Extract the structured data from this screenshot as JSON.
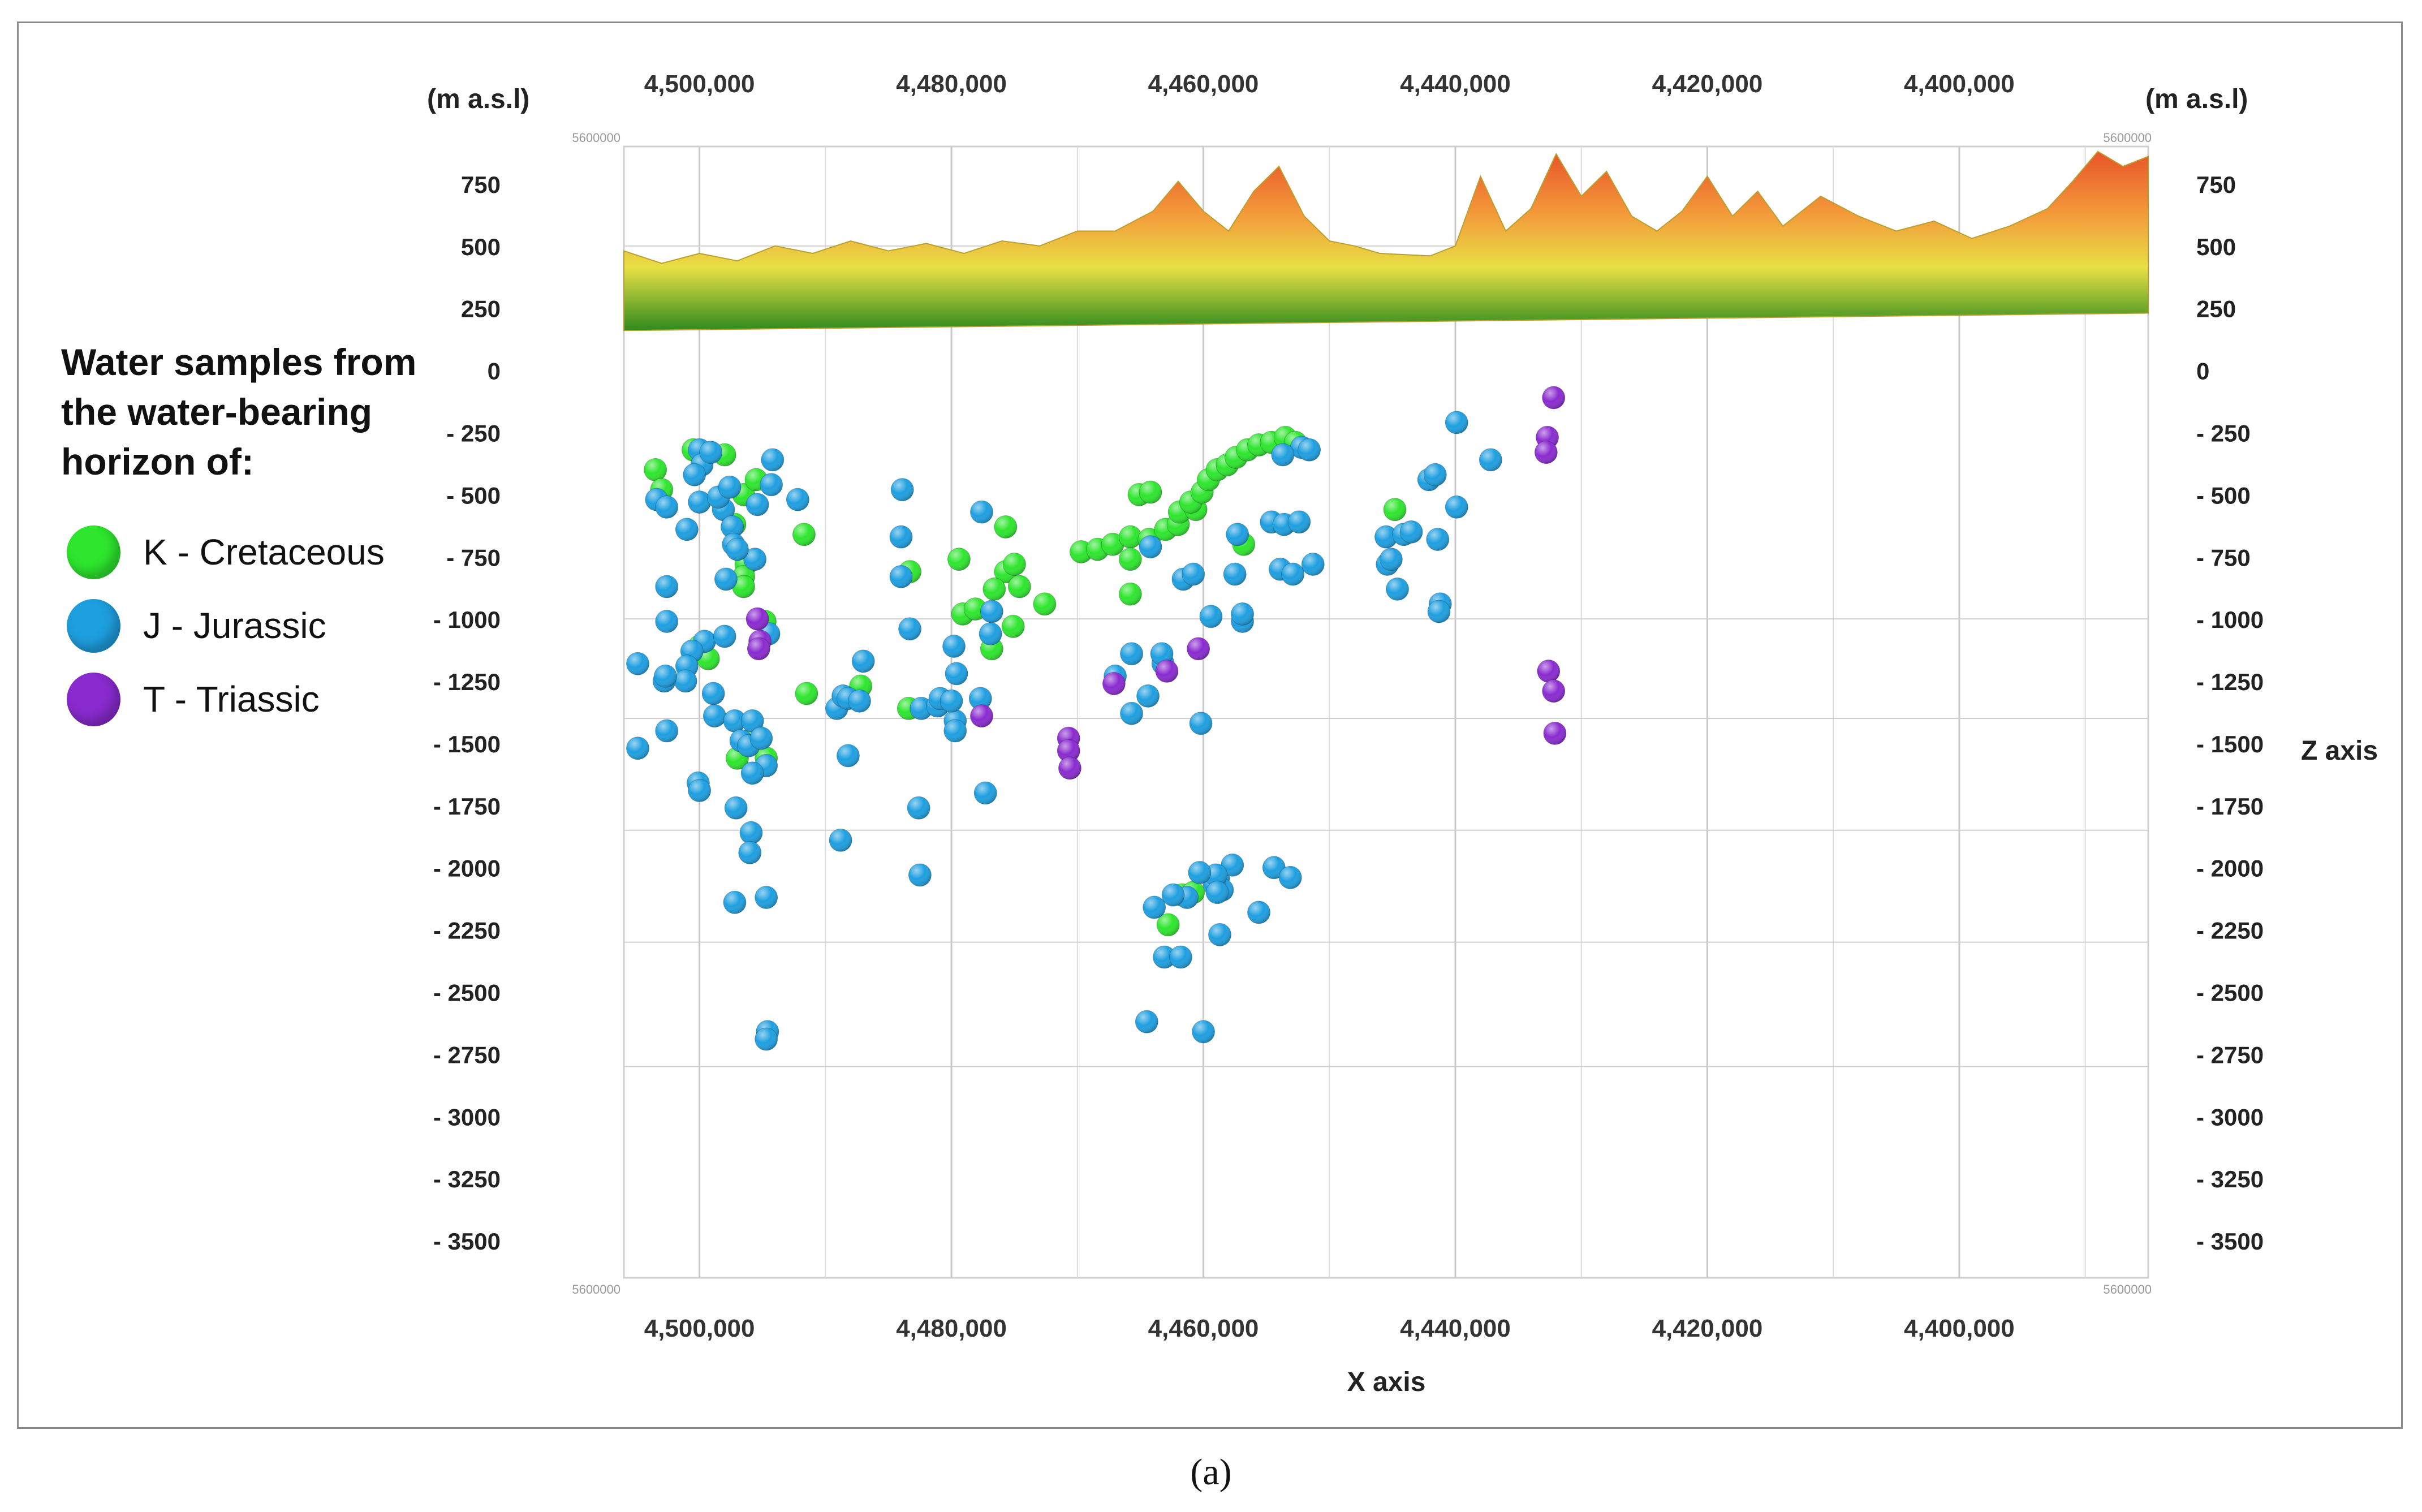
{
  "caption": "(a)",
  "legend": {
    "title": "Water samples from\nthe water-bearing\nhorizon of:",
    "items": [
      {
        "label": "K - Cretaceous",
        "color": "#2ee62e"
      },
      {
        "label": "J - Jurassic",
        "color": "#1e9fe0"
      },
      {
        "label": "T - Triassic",
        "color": "#8a2bd0"
      }
    ]
  },
  "chart_data": {
    "type": "scatter",
    "title": "",
    "xlabel": "X axis",
    "ylabel": "Z axis",
    "unit_left": "(m a.s.l)",
    "unit_right": "(m a.s.l)",
    "corner_label": "5600000",
    "x_ticks": [
      4500000,
      4480000,
      4460000,
      4440000,
      4420000,
      4400000
    ],
    "x_tick_labels": [
      "4,500,000",
      "4,480,000",
      "4,460,000",
      "4,440,000",
      "4,420,000",
      "4,400,000"
    ],
    "xlim": [
      4506000,
      4385000
    ],
    "y_ticks_left": [
      750,
      500,
      250,
      0,
      -250,
      -500,
      -750,
      -1000,
      -1250,
      -1500,
      -1750,
      -2000,
      -2250,
      -2500,
      -2750,
      -3000,
      -3250,
      -3500
    ],
    "y_ticks_right": [
      750,
      500,
      250,
      0,
      -250,
      -500,
      -750,
      -1000,
      -1250,
      -1500,
      -1750,
      -2000,
      -2250,
      -2500,
      -2750,
      -3000,
      -3250,
      -3500
    ],
    "y_tick_labels_left": [
      "750",
      "500",
      "250",
      "0",
      "- 250",
      "- 500",
      "- 750",
      "- 1000",
      "- 1250",
      "- 1500",
      "- 1750",
      "- 2000",
      "- 2250",
      "- 2500",
      "- 2750",
      "- 3000",
      "- 3250",
      "- 3500"
    ],
    "y_tick_labels_right": [
      "750",
      "500",
      "250",
      "0",
      "- 250",
      "- 500",
      "- 750",
      "- 1000",
      "- 1250",
      "- 1500",
      "- 1750",
      "- 2000",
      "- 2250",
      "- 2500",
      "- 2750",
      "- 3000",
      "- 3250",
      "- 3500"
    ],
    "ylim": [
      -3650,
      900
    ],
    "terrain_profile": [
      [
        4506000,
        480
      ],
      [
        4503000,
        430
      ],
      [
        4500000,
        470
      ],
      [
        4497000,
        440
      ],
      [
        4494000,
        500
      ],
      [
        4491000,
        470
      ],
      [
        4488000,
        520
      ],
      [
        4485000,
        480
      ],
      [
        4482000,
        510
      ],
      [
        4479000,
        470
      ],
      [
        4476000,
        520
      ],
      [
        4473000,
        500
      ],
      [
        4470000,
        560
      ],
      [
        4467000,
        560
      ],
      [
        4464000,
        640
      ],
      [
        4462000,
        760
      ],
      [
        4460000,
        640
      ],
      [
        4458000,
        560
      ],
      [
        4456000,
        720
      ],
      [
        4454000,
        820
      ],
      [
        4452000,
        620
      ],
      [
        4450000,
        520
      ],
      [
        4448000,
        500
      ],
      [
        4446000,
        470
      ],
      [
        4442000,
        460
      ],
      [
        4440000,
        500
      ],
      [
        4438000,
        780
      ],
      [
        4436000,
        560
      ],
      [
        4434000,
        650
      ],
      [
        4432000,
        870
      ],
      [
        4430000,
        700
      ],
      [
        4428000,
        800
      ],
      [
        4426000,
        620
      ],
      [
        4424000,
        560
      ],
      [
        4422000,
        640
      ],
      [
        4420000,
        780
      ],
      [
        4418000,
        620
      ],
      [
        4416000,
        720
      ],
      [
        4414000,
        580
      ],
      [
        4411000,
        700
      ],
      [
        4408000,
        620
      ],
      [
        4405000,
        560
      ],
      [
        4402000,
        600
      ],
      [
        4399000,
        530
      ],
      [
        4396000,
        580
      ],
      [
        4393000,
        650
      ],
      [
        4391000,
        760
      ],
      [
        4389000,
        880
      ],
      [
        4387000,
        820
      ],
      [
        4385000,
        860
      ]
    ],
    "series": [
      {
        "name": "K - Cretaceous",
        "color": "#2ee62e",
        "points": [
          [
            4503500,
            -400
          ],
          [
            4503000,
            -480
          ],
          [
            4500500,
            -320
          ],
          [
            4498000,
            -340
          ],
          [
            4496500,
            -500
          ],
          [
            4495500,
            -440
          ],
          [
            4497200,
            -620
          ],
          [
            4496300,
            -780
          ],
          [
            4496500,
            -830
          ],
          [
            4496500,
            -870
          ],
          [
            4494800,
            -1010
          ],
          [
            4500000,
            -1110
          ],
          [
            4499300,
            -1160
          ],
          [
            4497000,
            -1560
          ],
          [
            4495500,
            -1470
          ],
          [
            4494700,
            -1560
          ],
          [
            4491700,
            -660
          ],
          [
            4491500,
            -1300
          ],
          [
            4487200,
            -1270
          ],
          [
            4483300,
            -810
          ],
          [
            4483400,
            -1360
          ],
          [
            4479400,
            -760
          ],
          [
            4479100,
            -980
          ],
          [
            4478100,
            -960
          ],
          [
            4476800,
            -1120
          ],
          [
            4475700,
            -630
          ],
          [
            4475700,
            -810
          ],
          [
            4475000,
            -780
          ],
          [
            4476600,
            -880
          ],
          [
            4475100,
            -1030
          ],
          [
            4474600,
            -870
          ],
          [
            4472600,
            -940
          ],
          [
            4469700,
            -730
          ],
          [
            4468400,
            -720
          ],
          [
            4467200,
            -700
          ],
          [
            4465800,
            -670
          ],
          [
            4465800,
            -760
          ],
          [
            4465800,
            -900
          ],
          [
            4465100,
            -500
          ],
          [
            4464200,
            -490
          ],
          [
            4464300,
            -680
          ],
          [
            4463000,
            -640
          ],
          [
            4462000,
            -620
          ],
          [
            4461900,
            -570
          ],
          [
            4460600,
            -560
          ],
          [
            4461000,
            -530
          ],
          [
            4460100,
            -490
          ],
          [
            4459600,
            -440
          ],
          [
            4458900,
            -400
          ],
          [
            4458100,
            -380
          ],
          [
            4457400,
            -350
          ],
          [
            4456500,
            -320
          ],
          [
            4455600,
            -300
          ],
          [
            4454600,
            -290
          ],
          [
            4453500,
            -270
          ],
          [
            4452700,
            -290
          ],
          [
            4456800,
            -700
          ],
          [
            4444800,
            -560
          ],
          [
            4462800,
            -2230
          ],
          [
            4461700,
            -2110
          ],
          [
            4460800,
            -2100
          ]
        ]
      },
      {
        "name": "J - Jurassic",
        "color": "#1e9fe0",
        "points": [
          [
            4500000,
            -320
          ],
          [
            4499800,
            -380
          ],
          [
            4500400,
            -420
          ],
          [
            4499100,
            -330
          ],
          [
            4503400,
            -520
          ],
          [
            4502600,
            -550
          ],
          [
            4500000,
            -530
          ],
          [
            4498100,
            -560
          ],
          [
            4498500,
            -510
          ],
          [
            4501000,
            -640
          ],
          [
            4497600,
            -470
          ],
          [
            4495400,
            -540
          ],
          [
            4494300,
            -460
          ],
          [
            4494200,
            -360
          ],
          [
            4492200,
            -520
          ],
          [
            4497400,
            -630
          ],
          [
            4495600,
            -760
          ],
          [
            4497300,
            -700
          ],
          [
            4497000,
            -720
          ],
          [
            4497900,
            -840
          ],
          [
            4502600,
            -870
          ],
          [
            4502600,
            -1010
          ],
          [
            4499600,
            -1090
          ],
          [
            4500600,
            -1130
          ],
          [
            4498000,
            -1070
          ],
          [
            4501000,
            -1190
          ],
          [
            4504900,
            -1180
          ],
          [
            4501100,
            -1250
          ],
          [
            4502800,
            -1250
          ],
          [
            4502700,
            -1230
          ],
          [
            4498900,
            -1300
          ],
          [
            4498800,
            -1390
          ],
          [
            4497200,
            -1410
          ],
          [
            4496700,
            -1490
          ],
          [
            4495800,
            -1410
          ],
          [
            4496100,
            -1510
          ],
          [
            4495100,
            -1480
          ],
          [
            4494700,
            -1590
          ],
          [
            4495800,
            -1620
          ],
          [
            4494500,
            -1060
          ],
          [
            4504900,
            -1520
          ],
          [
            4502600,
            -1450
          ],
          [
            4500100,
            -1660
          ],
          [
            4500000,
            -1690
          ],
          [
            4497100,
            -1760
          ],
          [
            4495900,
            -1860
          ],
          [
            4496000,
            -1940
          ],
          [
            4497200,
            -2140
          ],
          [
            4494700,
            -2120
          ],
          [
            4494600,
            -2660
          ],
          [
            4494700,
            -2690
          ],
          [
            4489100,
            -1360
          ],
          [
            4488600,
            -1310
          ],
          [
            4488200,
            -1320
          ],
          [
            4487300,
            -1330
          ],
          [
            4487000,
            -1170
          ],
          [
            4488200,
            -1550
          ],
          [
            4488800,
            -1890
          ],
          [
            4483900,
            -480
          ],
          [
            4484000,
            -670
          ],
          [
            4484000,
            -830
          ],
          [
            4483300,
            -1040
          ],
          [
            4482400,
            -1360
          ],
          [
            4482600,
            -1760
          ],
          [
            4482500,
            -2030
          ],
          [
            4481100,
            -1350
          ],
          [
            4480900,
            -1320
          ],
          [
            4479800,
            -1110
          ],
          [
            4479600,
            -1220
          ],
          [
            4479700,
            -1410
          ],
          [
            4479700,
            -1450
          ],
          [
            4480000,
            -1330
          ],
          [
            4477600,
            -570
          ],
          [
            4476800,
            -970
          ],
          [
            4476900,
            -1060
          ],
          [
            4477700,
            -1320
          ],
          [
            4477300,
            -1700
          ],
          [
            4467000,
            -1230
          ],
          [
            4465700,
            -1140
          ],
          [
            4465700,
            -1380
          ],
          [
            4464400,
            -1310
          ],
          [
            4463200,
            -1180
          ],
          [
            4463300,
            -1140
          ],
          [
            4464200,
            -710
          ],
          [
            4461600,
            -840
          ],
          [
            4460800,
            -820
          ],
          [
            4460200,
            -1420
          ],
          [
            4459400,
            -990
          ],
          [
            4457300,
            -660
          ],
          [
            4457500,
            -820
          ],
          [
            4456900,
            -1010
          ],
          [
            4456900,
            -980
          ],
          [
            4454600,
            -610
          ],
          [
            4453600,
            -620
          ],
          [
            4452400,
            -610
          ],
          [
            4453900,
            -800
          ],
          [
            4452900,
            -820
          ],
          [
            4451300,
            -780
          ],
          [
            4452200,
            -310
          ],
          [
            4451600,
            -320
          ],
          [
            4453700,
            -340
          ],
          [
            4445500,
            -670
          ],
          [
            4445400,
            -780
          ],
          [
            4444600,
            -880
          ],
          [
            4444100,
            -660
          ],
          [
            4445100,
            -760
          ],
          [
            4443500,
            -650
          ],
          [
            4442100,
            -440
          ],
          [
            4441600,
            -420
          ],
          [
            4441400,
            -680
          ],
          [
            4441200,
            -940
          ],
          [
            4441300,
            -970
          ],
          [
            4439900,
            -550
          ],
          [
            4439900,
            -210
          ],
          [
            4437200,
            -360
          ],
          [
            4458800,
            -2040
          ],
          [
            4457700,
            -1990
          ],
          [
            4458500,
            -2090
          ],
          [
            4459100,
            -2070
          ],
          [
            4459000,
            -2030
          ],
          [
            4460300,
            -2020
          ],
          [
            4458900,
            -2100
          ],
          [
            4454400,
            -2000
          ],
          [
            4453100,
            -2040
          ],
          [
            4455600,
            -2180
          ],
          [
            4458700,
            -2270
          ],
          [
            4461300,
            -2120
          ],
          [
            4462400,
            -2110
          ],
          [
            4463900,
            -2160
          ],
          [
            4463100,
            -2360
          ],
          [
            4461800,
            -2360
          ],
          [
            4464500,
            -2620
          ],
          [
            4460000,
            -2660
          ]
        ]
      },
      {
        "name": "T - Triassic",
        "color": "#8a2bd0",
        "points": [
          [
            4495400,
            -1000
          ],
          [
            4495200,
            -1090
          ],
          [
            4495300,
            -1120
          ],
          [
            4477600,
            -1390
          ],
          [
            4470700,
            -1480
          ],
          [
            4470700,
            -1530
          ],
          [
            4470600,
            -1600
          ],
          [
            4467100,
            -1260
          ],
          [
            4462900,
            -1210
          ],
          [
            4460400,
            -1120
          ],
          [
            4432200,
            -110
          ],
          [
            4432700,
            -270
          ],
          [
            4432800,
            -330
          ],
          [
            4432600,
            -1210
          ],
          [
            4432200,
            -1290
          ],
          [
            4432100,
            -1460
          ]
        ]
      }
    ]
  }
}
